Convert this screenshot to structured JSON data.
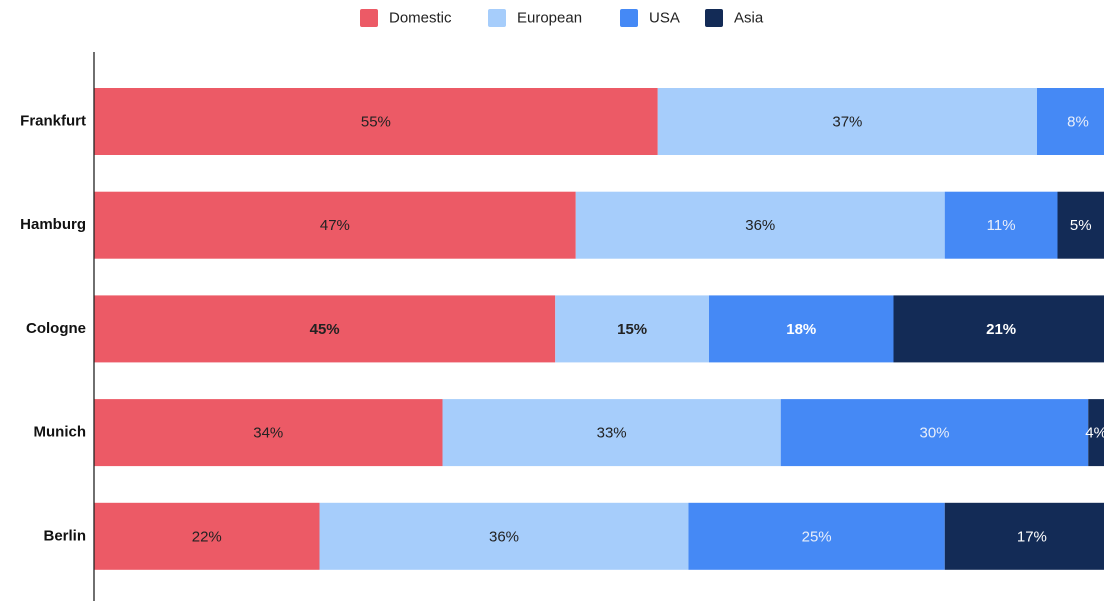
{
  "chart_data": {
    "type": "stacked_barh",
    "categories": [
      "Frankfurt",
      "Hamburg",
      "Cologne",
      "Munich",
      "Berlin"
    ],
    "series": [
      {
        "name": "Domestic",
        "color": "#ec5a66",
        "label_color": "#222222",
        "values": [
          55,
          47,
          45,
          34,
          22
        ],
        "value_labels": [
          "55%",
          "47%",
          "45%",
          "34%",
          "22%"
        ]
      },
      {
        "name": "European",
        "color": "#a6cdfb",
        "label_color": "#222222",
        "values": [
          37,
          36,
          15,
          33,
          36
        ],
        "value_labels": [
          "37%",
          "36%",
          "15%",
          "33%",
          "36%"
        ]
      },
      {
        "name": "USA",
        "color": "#4589f5",
        "label_color": "#e8eefa",
        "values": [
          8,
          11,
          18,
          30,
          25
        ],
        "value_labels": [
          "8%",
          "11%",
          "18%",
          "30%",
          "25%"
        ]
      },
      {
        "name": "Asia",
        "color": "#132b56",
        "label_color": "#ffffff",
        "values": [
          0,
          5,
          21,
          4,
          17
        ],
        "value_labels": [
          null,
          "5%",
          "21%",
          "4%",
          "17%"
        ]
      }
    ],
    "xlim": [
      0,
      100
    ],
    "highlight": 2,
    "legend": "top"
  }
}
